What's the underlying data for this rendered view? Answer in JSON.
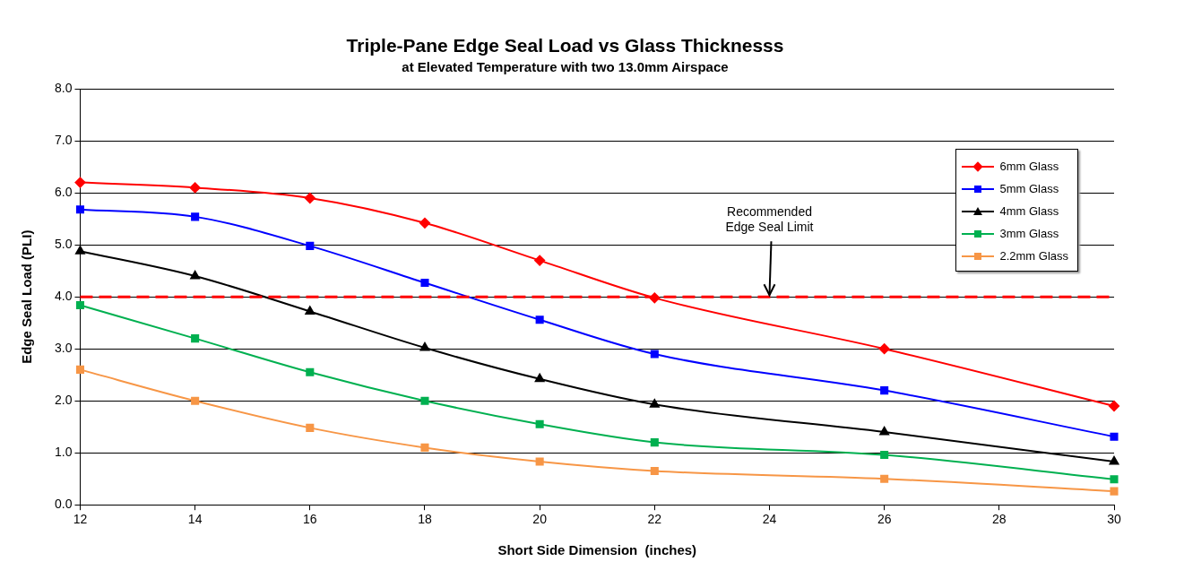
{
  "chart_data": {
    "type": "line",
    "title": "Triple-Pane Edge Seal Load vs Glass Thicknesss",
    "subtitle": "at Elevated Temperature with two 13.0mm Airspace",
    "xlabel": "Short Side Dimension  (inches)",
    "ylabel": "Edge Seal Load (PLI)",
    "x": [
      12,
      14,
      16,
      18,
      20,
      22,
      26,
      30
    ],
    "series": [
      {
        "name": "6mm Glass",
        "color": "#ff0000",
        "marker": "diamond",
        "values": [
          6.2,
          6.1,
          5.9,
          5.42,
          4.7,
          3.98,
          3.0,
          1.9
        ]
      },
      {
        "name": "5mm Glass",
        "color": "#0000ff",
        "marker": "square",
        "values": [
          5.68,
          5.54,
          4.98,
          4.27,
          3.56,
          2.9,
          2.2,
          1.31
        ]
      },
      {
        "name": "4mm Glass",
        "color": "#000000",
        "marker": "triangle",
        "values": [
          4.88,
          4.4,
          3.72,
          3.02,
          2.42,
          1.93,
          1.4,
          0.83
        ]
      },
      {
        "name": "3mm Glass",
        "color": "#00b050",
        "marker": "square",
        "values": [
          3.84,
          3.2,
          2.55,
          2.0,
          1.55,
          1.2,
          0.96,
          0.49
        ]
      },
      {
        "name": "2.2mm Glass",
        "color": "#f79646",
        "marker": "square",
        "values": [
          2.6,
          2.0,
          1.48,
          1.1,
          0.83,
          0.65,
          0.5,
          0.26
        ]
      }
    ],
    "xlim": [
      12,
      30
    ],
    "xticks": [
      12,
      14,
      16,
      18,
      20,
      22,
      24,
      26,
      28,
      30
    ],
    "ylim": [
      0,
      8
    ],
    "yticks": [
      {
        "value": 0,
        "label": "0.0"
      },
      {
        "value": 1,
        "label": "1.0"
      },
      {
        "value": 2,
        "label": "2.0"
      },
      {
        "value": 3,
        "label": "3.0"
      },
      {
        "value": 4,
        "label": "4.0"
      },
      {
        "value": 5,
        "label": "5.0"
      },
      {
        "value": 6,
        "label": "6.0"
      },
      {
        "value": 7,
        "label": "7.0"
      },
      {
        "value": 8,
        "label": "8.0"
      }
    ],
    "ref_lines": [
      {
        "axis": "y",
        "value": 4,
        "color": "#ff0000",
        "line_style": "dashed"
      }
    ],
    "annotations": [
      {
        "text": "Recommended Edge Seal Limit",
        "x": 24,
        "y": 4
      }
    ],
    "grid": "y",
    "legend": "top right"
  }
}
